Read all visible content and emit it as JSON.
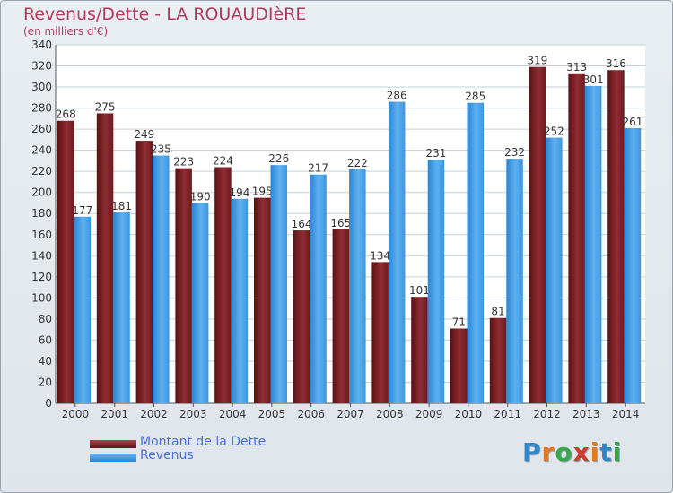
{
  "chart_data": {
    "type": "bar",
    "title": "Revenus/Dette - LA ROUAUDIèRE",
    "subtitle": "(en milliers d'€)",
    "categories": [
      "2000",
      "2001",
      "2002",
      "2003",
      "2004",
      "2005",
      "2006",
      "2007",
      "2008",
      "2009",
      "2010",
      "2011",
      "2012",
      "2013",
      "2014"
    ],
    "series": [
      {
        "name": "Montant de la Dette",
        "color": "#7a1f24",
        "values": [
          268,
          275,
          249,
          223,
          224,
          195,
          164,
          165,
          134,
          101,
          71,
          81,
          319,
          313,
          316
        ]
      },
      {
        "name": "Revenus",
        "color": "#3d9be6",
        "values": [
          177,
          181,
          235,
          190,
          194,
          226,
          217,
          222,
          286,
          231,
          285,
          232,
          252,
          301,
          261
        ]
      }
    ],
    "ylim": [
      0,
      340
    ],
    "ytick_step": 20,
    "grid": true,
    "legend_position": "bottom-left"
  },
  "logo": {
    "text": "Proxiti"
  }
}
